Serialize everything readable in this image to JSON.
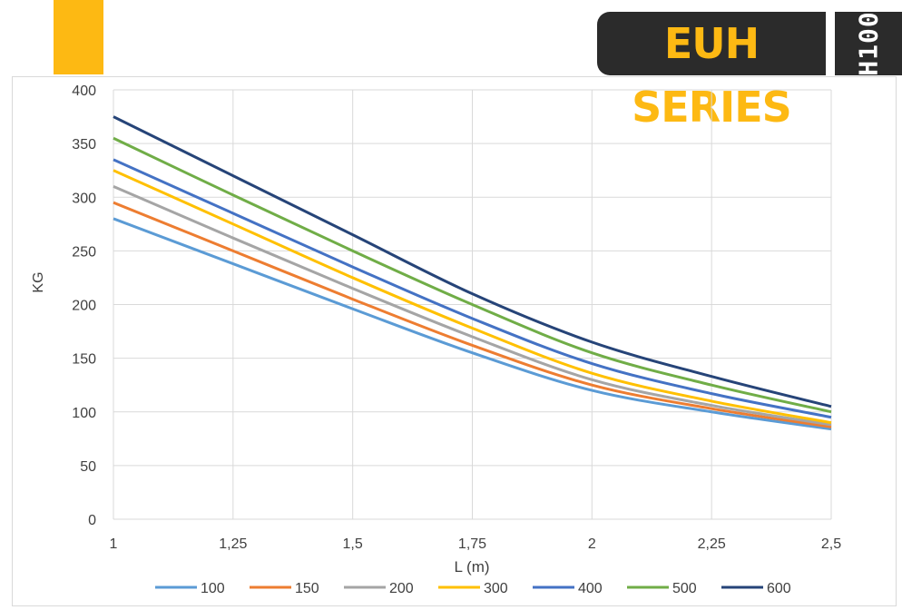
{
  "branding": {
    "series_label": "EUH SERIES",
    "model_label": "H100",
    "accent_color": "#fdb913",
    "badge_color": "#2b2b2b"
  },
  "chart_data": {
    "type": "line",
    "title": "",
    "xlabel": "L (m)",
    "ylabel": "KG",
    "x": [
      1,
      1.25,
      1.5,
      1.75,
      2,
      2.25,
      2.5
    ],
    "x_tick_labels": [
      "1",
      "1,25",
      "1,5",
      "1,75",
      "2",
      "2,25",
      "2,5"
    ],
    "ylim": [
      0,
      400
    ],
    "y_ticks": [
      0,
      50,
      100,
      150,
      200,
      250,
      300,
      350,
      400
    ],
    "grid": true,
    "legend_position": "bottom",
    "series": [
      {
        "name": "100",
        "color": "#5b9bd5",
        "values": [
          280,
          238,
          196,
          155,
          120,
          100,
          84
        ]
      },
      {
        "name": "150",
        "color": "#ed7d31",
        "values": [
          295,
          250,
          205,
          162,
          125,
          103,
          86
        ]
      },
      {
        "name": "200",
        "color": "#a5a5a5",
        "values": [
          310,
          262,
          215,
          170,
          130,
          106,
          88
        ]
      },
      {
        "name": "300",
        "color": "#ffc000",
        "values": [
          325,
          275,
          225,
          178,
          136,
          110,
          90
        ]
      },
      {
        "name": "400",
        "color": "#4472c4",
        "values": [
          335,
          285,
          235,
          187,
          145,
          117,
          95
        ]
      },
      {
        "name": "500",
        "color": "#70ad47",
        "values": [
          355,
          302,
          250,
          200,
          155,
          125,
          100
        ]
      },
      {
        "name": "600",
        "color": "#264478",
        "values": [
          375,
          320,
          265,
          210,
          165,
          133,
          105
        ]
      }
    ]
  }
}
